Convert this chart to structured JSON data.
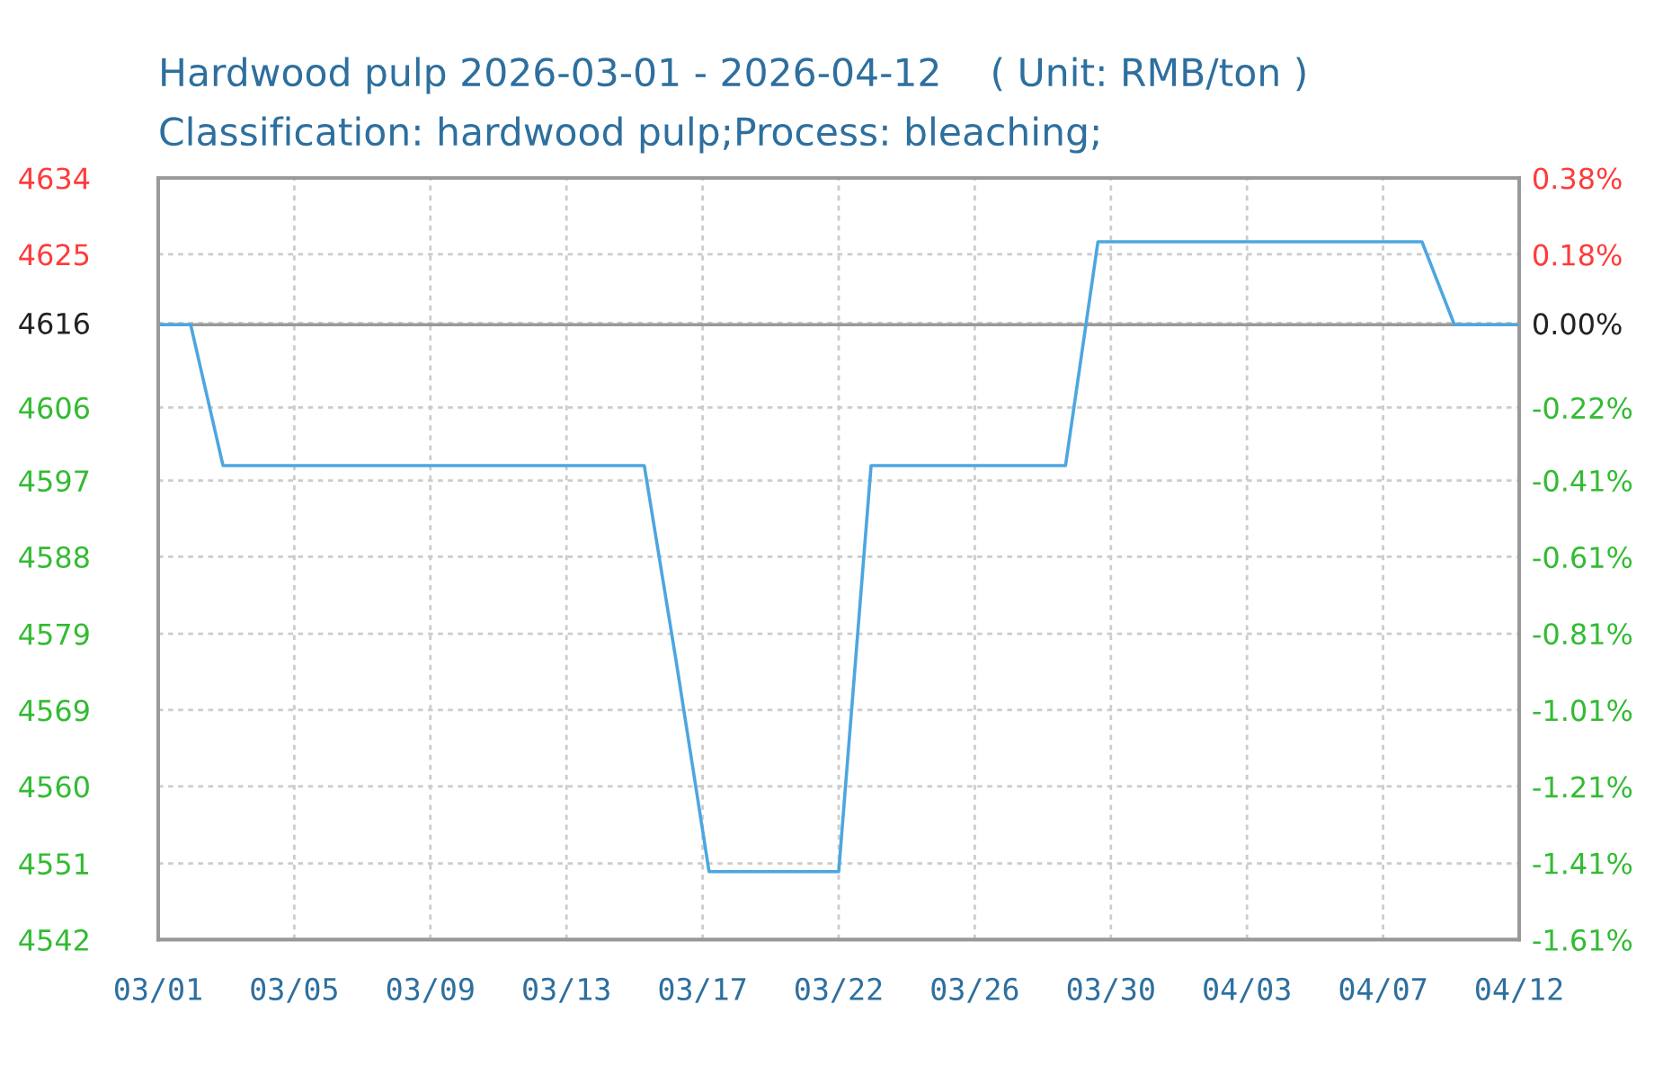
{
  "chart_data": {
    "type": "line",
    "title": "Hardwood pulp 2026-03-01 - 2026-04-12    ( Unit: RMB/ton )",
    "subtitle": "Classification: hardwood pulp;Process: bleaching;",
    "x": [
      "2026-03-01",
      "2026-03-02",
      "2026-03-03",
      "2026-03-04",
      "2026-03-05",
      "2026-03-06",
      "2026-03-07",
      "2026-03-08",
      "2026-03-09",
      "2026-03-10",
      "2026-03-11",
      "2026-03-12",
      "2026-03-13",
      "2026-03-14",
      "2026-03-15",
      "2026-03-16",
      "2026-03-17",
      "2026-03-18",
      "2026-03-19",
      "2026-03-20",
      "2026-03-21",
      "2026-03-22",
      "2026-03-23",
      "2026-03-24",
      "2026-03-25",
      "2026-03-26",
      "2026-03-27",
      "2026-03-28",
      "2026-03-29",
      "2026-03-30",
      "2026-03-31",
      "2026-04-01",
      "2026-04-02",
      "2026-04-03",
      "2026-04-04",
      "2026-04-05",
      "2026-04-06",
      "2026-04-07",
      "2026-04-08",
      "2026-04-09",
      "2026-04-10",
      "2026-04-11",
      "2026-04-12"
    ],
    "series": [
      {
        "color": "#4da6e0",
        "values": [
          4616,
          4616,
          4599,
          4599,
          4599,
          4599,
          4599,
          4599,
          4599,
          4599,
          4599,
          4599,
          4599,
          4599,
          4599,
          4599,
          4575,
          4550,
          4550,
          4550,
          4550,
          4550,
          4599,
          4599,
          4599,
          4599,
          4599,
          4599,
          4599,
          4626,
          4626,
          4626,
          4626,
          4626,
          4626,
          4626,
          4626,
          4626,
          4626,
          4626,
          4616,
          4616,
          4616
        ]
      }
    ],
    "xlim": [
      "2026-03-01",
      "2026-04-12"
    ],
    "xticks": [
      {
        "value": "2026-03-01",
        "label": "03/01"
      },
      {
        "value": "2026-03-05T04:48",
        "label": "03/05"
      },
      {
        "value": "2026-03-09T09:36",
        "label": "03/09"
      },
      {
        "value": "2026-03-13T14:24",
        "label": "03/13"
      },
      {
        "value": "2026-03-17T19:12",
        "label": "03/17"
      },
      {
        "value": "2026-03-22",
        "label": "03/22"
      },
      {
        "value": "2026-03-26T04:48",
        "label": "03/26"
      },
      {
        "value": "2026-03-30T09:36",
        "label": "03/30"
      },
      {
        "value": "2026-04-03T14:24",
        "label": "04/03"
      },
      {
        "value": "2026-04-07T19:12",
        "label": "04/07"
      },
      {
        "value": "2026-04-12",
        "label": "04/12"
      }
    ],
    "ylim": [
      4541.8,
      4633.7
    ],
    "yticks": [
      {
        "value": 4633.7,
        "label": "4634"
      },
      {
        "value": 4624.5,
        "label": "4625"
      },
      {
        "value": 4616.2,
        "label": "4616"
      },
      4606,
      {
        "value": 4597.2,
        "label": "4597"
      },
      4588,
      {
        "value": 4578.7,
        "label": "4579"
      },
      {
        "value": 4569.5,
        "label": "4569"
      },
      {
        "value": 4560.3,
        "label": "4560"
      },
      4551,
      {
        "value": 4541.8,
        "label": "4542"
      }
    ],
    "y2lim": [
      -1.61,
      0.38
    ],
    "y2ticks": [
      {
        "value": 0.38,
        "label": "0.38%"
      },
      {
        "value": 0.18,
        "label": "0.18%"
      },
      {
        "value": 0,
        "label": "0.00%"
      },
      {
        "value": -0.22,
        "label": "-0.22%"
      },
      {
        "value": -0.41,
        "label": "-0.41%"
      },
      {
        "value": -0.61,
        "label": "-0.61%"
      },
      {
        "value": -0.81,
        "label": "-0.81%"
      },
      {
        "value": -1.01,
        "label": "-1.01%"
      },
      {
        "value": -1.21,
        "label": "-1.21%"
      },
      {
        "value": -1.41,
        "label": "-1.41%"
      },
      {
        "value": -1.61,
        "label": "-1.61%"
      }
    ],
    "ref_lines": [
      {
        "axis": "y",
        "value": 4616,
        "color": "#999999"
      }
    ],
    "grid": true
  }
}
